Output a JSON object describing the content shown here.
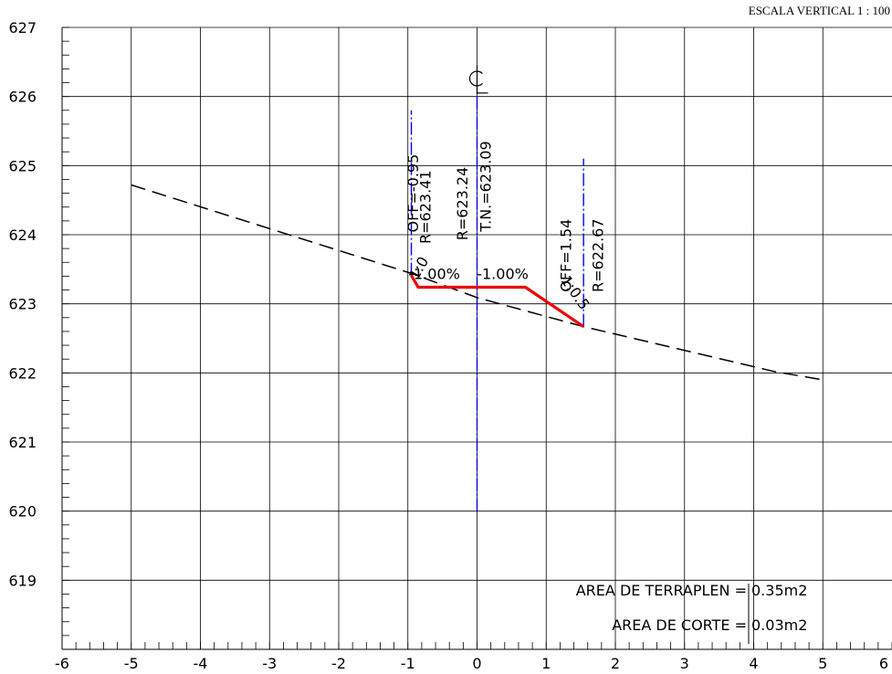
{
  "header": {
    "scale_label": "ESCALA VERTICAL 1 : 100"
  },
  "chart_data": {
    "type": "line",
    "x_ticks": [
      "-6",
      "-5",
      "-4",
      "-3",
      "-2",
      "-1",
      "0",
      "1",
      "2",
      "3",
      "4",
      "5",
      "6"
    ],
    "y_ticks": [
      "619",
      "620",
      "621",
      "622",
      "623",
      "624",
      "625",
      "626",
      "627"
    ],
    "xlim": [
      -6,
      6
    ],
    "ylim": [
      618,
      627
    ],
    "grid": true,
    "series": [
      {
        "role": "terrain",
        "style": "dashed",
        "color": "#000000",
        "points": [
          [
            -5,
            624.72
          ],
          [
            -0.95,
            623.44
          ],
          [
            0,
            623.09
          ],
          [
            1.54,
            622.67
          ],
          [
            4.3,
            622.02
          ],
          [
            5,
            621.9
          ]
        ]
      },
      {
        "role": "road-section",
        "style": "solid",
        "color": "#ee0000",
        "points": [
          [
            -0.95,
            623.41
          ],
          [
            -0.85,
            623.24
          ],
          [
            0,
            623.24
          ],
          [
            0.7,
            623.24
          ],
          [
            1.54,
            622.67
          ]
        ]
      }
    ],
    "vertical_lines": [
      {
        "x": -0.95,
        "y_from": 623.41,
        "y_to": 625.8,
        "color": "#0000ff",
        "style": "dashdot"
      },
      {
        "x": 0,
        "y_from": 620.0,
        "y_to": 626.1,
        "color": "#0000ff",
        "style": "dashdot"
      },
      {
        "x": 1.54,
        "y_from": 622.67,
        "y_to": 625.1,
        "color": "#0000ff",
        "style": "dashdot"
      }
    ],
    "centerline_symbol": "CL",
    "annotations": [
      {
        "text": "OFF=-0.95",
        "x": -0.85,
        "y": 624.6
      },
      {
        "text": "R=623.41",
        "x": -0.67,
        "y": 624.4
      },
      {
        "text": "R=623.24",
        "x": -0.14,
        "y": 624.45
      },
      {
        "text": "T.N.=623.09",
        "x": 0.2,
        "y": 624.7
      },
      {
        "text": "OFF=1.54",
        "x": 1.36,
        "y": 623.7
      },
      {
        "text": "R=622.67",
        "x": 1.82,
        "y": 623.7
      }
    ],
    "slope_labels": [
      {
        "text": "-1.00%",
        "x": -0.62,
        "y": 623.36
      },
      {
        "text": "-1.00%",
        "x": 0.37,
        "y": 623.36
      }
    ],
    "side_slope_labels": [
      {
        "text": "1:0",
        "x": -0.78,
        "y": 623.48,
        "angle": -60
      },
      {
        "text": "1:0.5",
        "x": 1.36,
        "y": 623.12,
        "angle": 55
      }
    ],
    "areas": [
      {
        "label": "AREA DE TERRAPLEN =",
        "value": "0.35m2"
      },
      {
        "label": "AREA DE CORTE =",
        "value": "0.03m2"
      }
    ]
  }
}
